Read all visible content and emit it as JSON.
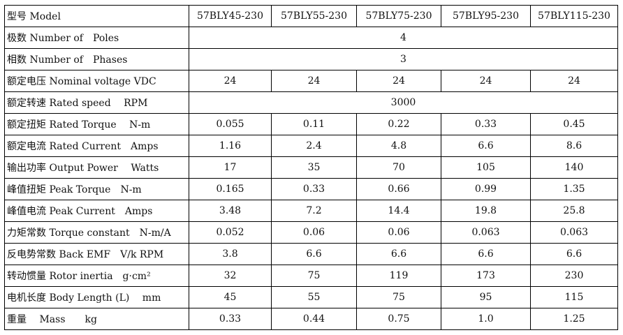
{
  "header": {
    "label": "型号 Model",
    "models": [
      "57BLY45-230",
      "57BLY55-230",
      "57BLY75-230",
      "57BLY95-230",
      "57BLY115-230"
    ]
  },
  "rows": [
    {
      "label": "极数 Number of　Poles",
      "span": "4"
    },
    {
      "label": "相数 Number of　Phases",
      "span": "3"
    },
    {
      "label": "额定电压 Nominal voltage VDC",
      "values": [
        "24",
        "24",
        "24",
        "24",
        "24"
      ]
    },
    {
      "label": "额定转速 Rated speed　 RPM",
      "span": "3000"
    },
    {
      "label": "额定扭矩 Rated Torque　 N-m",
      "values": [
        "0.055",
        "0.11",
        "0.22",
        "0.33",
        "0.45"
      ]
    },
    {
      "label": "额定电流 Rated Current　Amps",
      "values": [
        "1.16",
        "2.4",
        "4.8",
        "6.6",
        "8.6"
      ]
    },
    {
      "label": "输出功率 Output Power　 Watts",
      "values": [
        "17",
        "35",
        "70",
        "105",
        "140"
      ]
    },
    {
      "label": "峰值扭矩 Peak Torque　N-m",
      "values": [
        "0.165",
        "0.33",
        "0.66",
        "0.99",
        "1.35"
      ]
    },
    {
      "label": "峰值电流 Peak Current　Amps",
      "values": [
        "3.48",
        "7.2",
        "14.4",
        "19.8",
        "25.8"
      ]
    },
    {
      "label": "力矩常数 Torque constant　N-m/A",
      "values": [
        "0.052",
        "0.06",
        "0.06",
        "0.063",
        "0.063"
      ]
    },
    {
      "label": "反电势常数 Back EMF　V/k RPM",
      "values": [
        "3.8",
        "6.6",
        "6.6",
        "6.6",
        "6.6"
      ]
    },
    {
      "label": "转动惯量 Rotor inertia　g·cm²",
      "values": [
        "32",
        "75",
        "119",
        "173",
        "230"
      ]
    },
    {
      "label": "电机长度 Body Length (L)　 mm",
      "values": [
        "45",
        "55",
        "75",
        "95",
        "115"
      ]
    },
    {
      "label": "重量　 Mass　　kg",
      "values": [
        "0.33",
        "0.44",
        "0.75",
        "1.0",
        "1.25"
      ]
    }
  ]
}
